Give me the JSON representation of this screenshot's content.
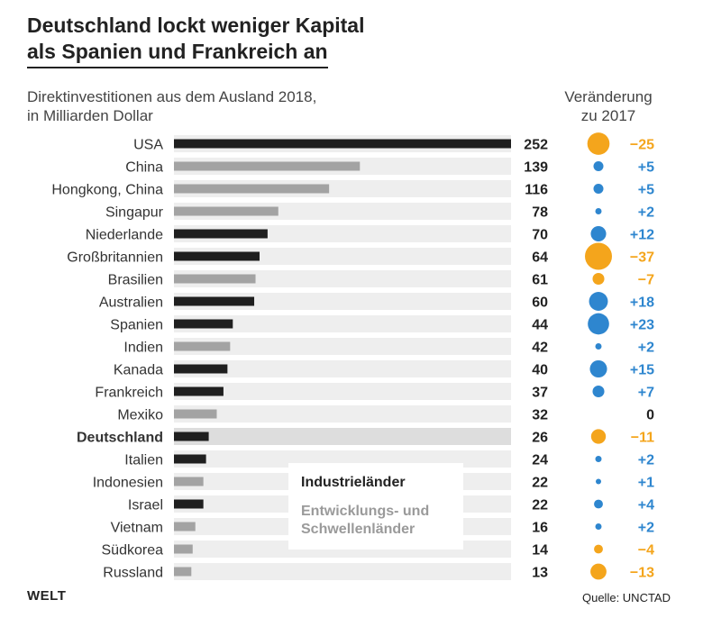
{
  "title_line1": "Deutschland lockt weniger Kapital",
  "title_line2": "als Spanien und Frankreich an",
  "subtitle_line1": "Direktinvestitionen aus dem Ausland 2018,",
  "subtitle_line2": "in Milliarden Dollar",
  "change_header_line1": "Veränderung",
  "change_header_line2": "zu 2017",
  "legend": {
    "industrial": "Industrieländer",
    "developing_line1": "Entwicklungs- und",
    "developing_line2": "Schwellenländer"
  },
  "brand": "WELT",
  "source": "Quelle: UNCTAD",
  "colors": {
    "industrial": "#1f1f1f",
    "developing": "#a3a3a3",
    "row_background": "#eeeeee",
    "highlight_background": "#dddddd",
    "increase": "#2e86cf",
    "decrease": "#f4a51c",
    "neutral": "#222222"
  },
  "chart_data": {
    "type": "bar",
    "orientation": "horizontal",
    "xlim": [
      0,
      252
    ],
    "grid": false,
    "legend_position": "bottom-center",
    "categories": [
      "USA",
      "China",
      "Hongkong, China",
      "Singapur",
      "Niederlande",
      "Großbritannien",
      "Brasilien",
      "Australien",
      "Spanien",
      "Indien",
      "Kanada",
      "Frankreich",
      "Mexiko",
      "Deutschland",
      "Italien",
      "Indonesien",
      "Israel",
      "Vietnam",
      "Südkorea",
      "Russland"
    ],
    "values": [
      252,
      139,
      116,
      78,
      70,
      64,
      61,
      60,
      44,
      42,
      40,
      37,
      32,
      26,
      24,
      22,
      22,
      16,
      14,
      13
    ],
    "groups": [
      "industrial",
      "developing",
      "developing",
      "developing",
      "industrial",
      "industrial",
      "developing",
      "industrial",
      "industrial",
      "developing",
      "industrial",
      "industrial",
      "developing",
      "industrial",
      "industrial",
      "developing",
      "industrial",
      "developing",
      "developing",
      "developing"
    ],
    "change_vs_2017": [
      -25,
      5,
      5,
      2,
      12,
      -37,
      -7,
      18,
      23,
      2,
      15,
      7,
      0,
      -11,
      2,
      1,
      4,
      2,
      -4,
      -13
    ],
    "change_labels": [
      "−25",
      "+5",
      "+5",
      "+2",
      "+12",
      "−37",
      "−7",
      "+18",
      "+23",
      "+2",
      "+15",
      "+7",
      "0",
      "−11",
      "+2",
      "+1",
      "+4",
      "+2",
      "−4",
      "−13"
    ],
    "highlight": "Deutschland"
  }
}
